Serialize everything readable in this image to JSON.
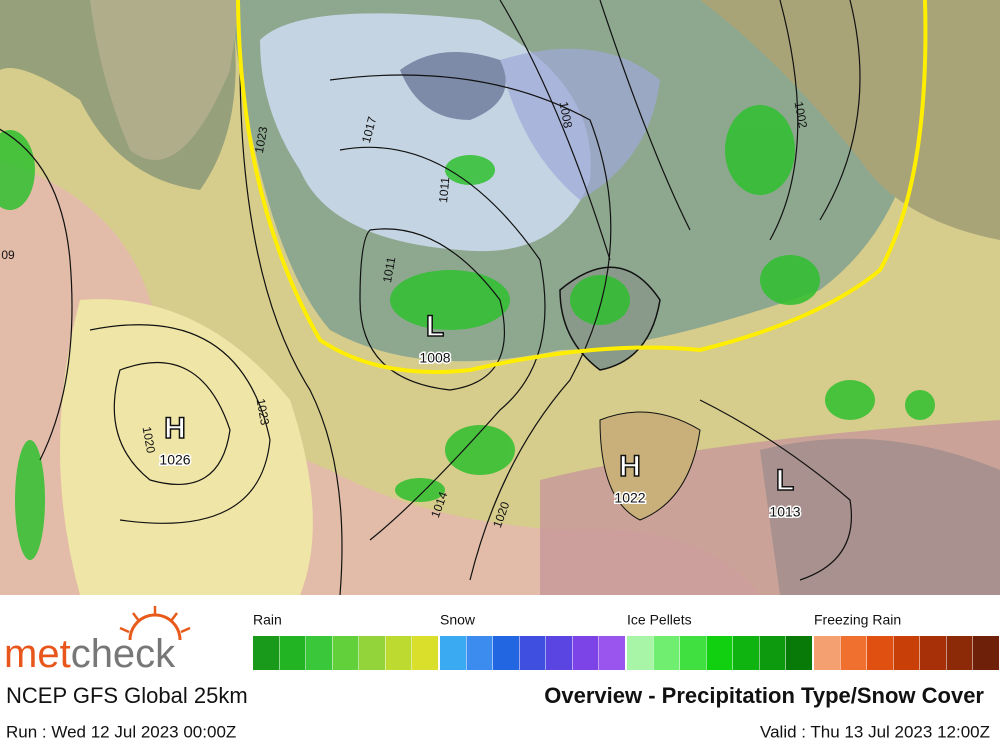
{
  "map": {
    "pressure_centers": [
      {
        "type": "L",
        "value": "1008"
      },
      {
        "type": "H",
        "value": "1026"
      },
      {
        "type": "H",
        "value": "1022"
      },
      {
        "type": "L",
        "value": "1013"
      }
    ],
    "isobar_labels": [
      "1023",
      "1017",
      "1011",
      "1011",
      "1008",
      "1002",
      "1023",
      "1020",
      "1014",
      "1020",
      "09"
    ]
  },
  "legend": {
    "groups": [
      {
        "label": "Rain"
      },
      {
        "label": "Snow"
      },
      {
        "label": "Ice Pellets"
      },
      {
        "label": "Freezing Rain"
      }
    ]
  },
  "footer": {
    "logo": [
      "met",
      "check"
    ],
    "model": "NCEP GFS Global 25km",
    "title": "Overview - Precipitation Type/Snow Cover",
    "run": "Run : Wed 12 Jul 2023 00:00Z",
    "valid": "Valid : Thu 13 Jul 2023 12:00Z"
  }
}
